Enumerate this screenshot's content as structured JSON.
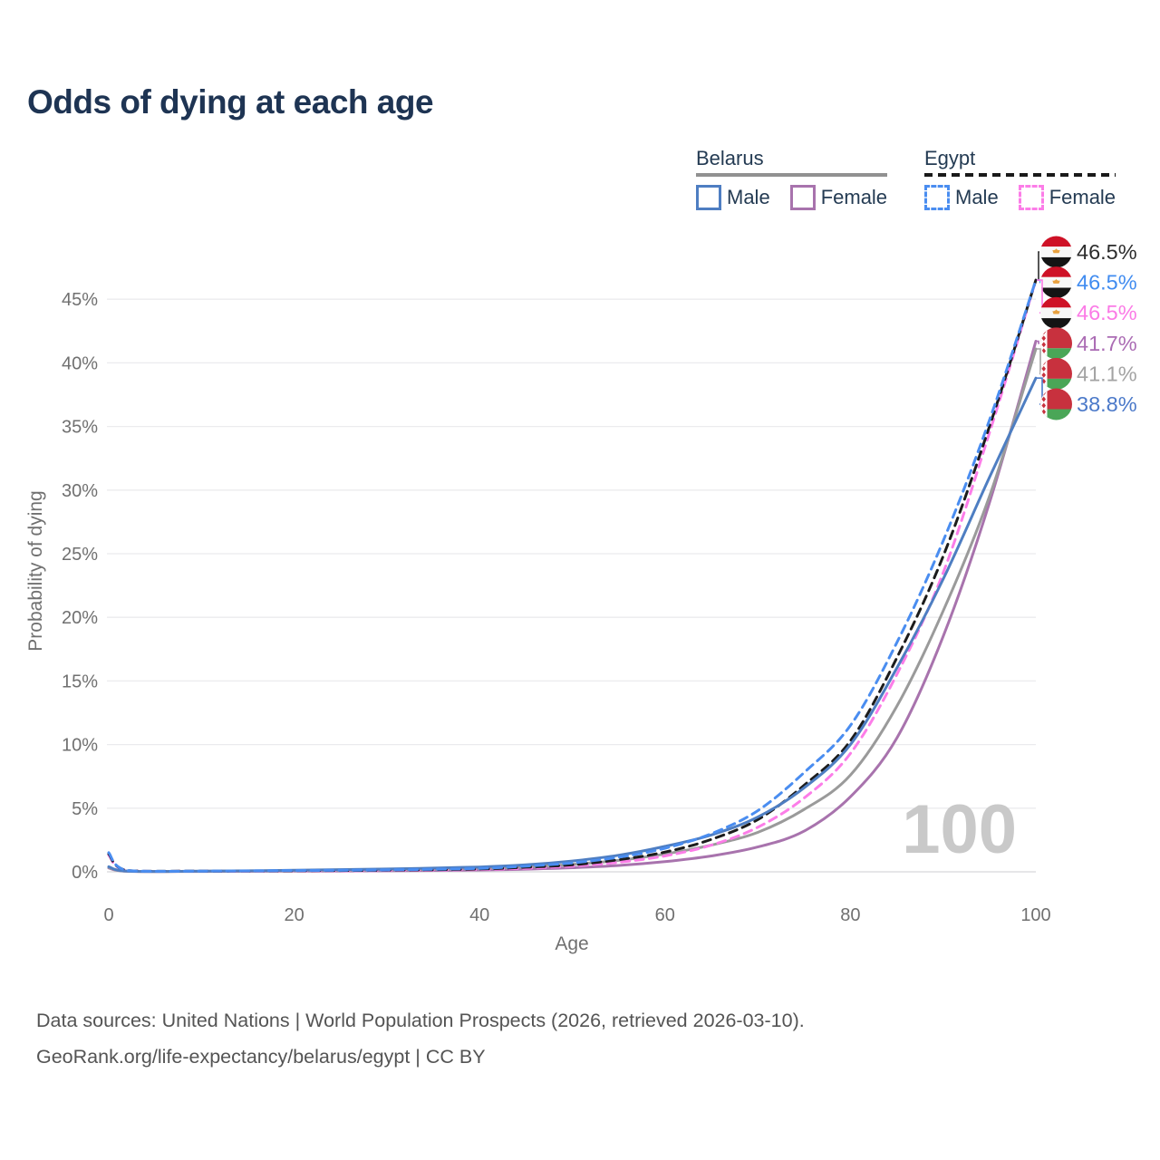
{
  "title": "Odds of dying at each age",
  "legend": {
    "groups": [
      {
        "country": "Belarus",
        "line_style": "solid",
        "underline_color": "#919191",
        "items": [
          {
            "label": "Male",
            "color": "#4e7ec2",
            "dashed": false
          },
          {
            "label": "Female",
            "color": "#a873ad",
            "dashed": false
          }
        ]
      },
      {
        "country": "Egypt",
        "line_style": "dashed",
        "underline_color": "#1a1a1a",
        "items": [
          {
            "label": "Male",
            "color": "#4a8df0",
            "dashed": true
          },
          {
            "label": "Female",
            "color": "#fc7de8",
            "dashed": true
          }
        ]
      }
    ]
  },
  "chart_data": {
    "type": "line",
    "title": "Odds of dying at each age",
    "xlabel": "Age",
    "ylabel": "Probability of dying",
    "xlim": [
      0,
      100
    ],
    "ylim_percent": [
      0,
      48
    ],
    "grid": true,
    "legend_position": "top-right",
    "watermark": "100",
    "xticks": [
      0,
      20,
      40,
      60,
      80,
      100
    ],
    "yticks": [
      {
        "value": 0,
        "label": "0%"
      },
      {
        "value": 5,
        "label": "5%"
      },
      {
        "value": 10,
        "label": "10%"
      },
      {
        "value": 15,
        "label": "15%"
      },
      {
        "value": 20,
        "label": "20%"
      },
      {
        "value": 25,
        "label": "25%"
      },
      {
        "value": 30,
        "label": "30%"
      },
      {
        "value": 35,
        "label": "35%"
      },
      {
        "value": 40,
        "label": "40%"
      },
      {
        "value": 45,
        "label": "45%"
      }
    ],
    "ages": [
      0,
      2,
      10,
      20,
      30,
      40,
      45,
      50,
      55,
      60,
      65,
      70,
      75,
      80,
      85,
      90,
      95,
      100
    ],
    "series": [
      {
        "id": "belarus-female",
        "country": "Belarus",
        "sex": "Female",
        "color": "#a873ad",
        "dashed": false,
        "values_percent": [
          0.3,
          0.04,
          0.03,
          0.05,
          0.08,
          0.14,
          0.21,
          0.32,
          0.5,
          0.8,
          1.25,
          1.95,
          3.2,
          5.9,
          10.5,
          18.5,
          29,
          41.7
        ]
      },
      {
        "id": "belarus-both",
        "country": "Belarus",
        "sex": "Both sexes",
        "color": "#9a9a9a",
        "dashed": false,
        "values_percent": [
          0.35,
          0.05,
          0.04,
          0.09,
          0.15,
          0.26,
          0.38,
          0.58,
          0.9,
          1.4,
          2.1,
          3.1,
          4.9,
          7.6,
          13,
          20.5,
          29.5,
          41.1
        ]
      },
      {
        "id": "egypt-female",
        "country": "Egypt",
        "sex": "Female",
        "color": "#fc7de8",
        "dashed": true,
        "values_percent": [
          1.3,
          0.09,
          0.05,
          0.07,
          0.1,
          0.18,
          0.28,
          0.45,
          0.75,
          1.25,
          2.1,
          3.5,
          5.8,
          9.3,
          15.5,
          23.5,
          34.5,
          46.5
        ]
      },
      {
        "id": "egypt-both",
        "country": "Egypt",
        "sex": "Both sexes",
        "color": "#1c1c1c",
        "dashed": true,
        "values_percent": [
          1.4,
          0.1,
          0.055,
          0.085,
          0.125,
          0.22,
          0.36,
          0.55,
          0.95,
          1.55,
          2.55,
          4.1,
          6.8,
          10.3,
          16.8,
          24.8,
          35,
          46.5
        ]
      },
      {
        "id": "belarus-male",
        "country": "Belarus",
        "sex": "Male",
        "color": "#4e7ec2",
        "dashed": false,
        "values_percent": [
          0.4,
          0.06,
          0.05,
          0.12,
          0.22,
          0.38,
          0.55,
          0.85,
          1.3,
          2,
          2.9,
          4.3,
          6.6,
          10,
          16,
          23,
          31,
          38.8
        ]
      },
      {
        "id": "egypt-male",
        "country": "Egypt",
        "sex": "Male",
        "color": "#4a8df0",
        "dashed": true,
        "values_percent": [
          1.5,
          0.1,
          0.06,
          0.1,
          0.15,
          0.27,
          0.45,
          0.7,
          1.15,
          1.85,
          3,
          4.8,
          7.8,
          11.5,
          18,
          26,
          35.5,
          46.5
        ]
      }
    ],
    "end_labels": [
      {
        "label": "46.5%",
        "value_percent": 46.5,
        "color": "#2d2d2d",
        "flag": "egypt",
        "series": "egypt-both"
      },
      {
        "label": "46.5%",
        "value_percent": 46.5,
        "color": "#418cf0",
        "flag": "egypt",
        "series": "egypt-male"
      },
      {
        "label": "46.5%",
        "value_percent": 46.5,
        "color": "#fb7be6",
        "flag": "egypt",
        "series": "egypt-female"
      },
      {
        "label": "41.7%",
        "value_percent": 41.7,
        "color": "#ab6cb4",
        "flag": "belarus",
        "series": "belarus-female"
      },
      {
        "label": "41.1%",
        "value_percent": 41.1,
        "color": "#a3a3a3",
        "flag": "belarus",
        "series": "belarus-both"
      },
      {
        "label": "38.8%",
        "value_percent": 38.8,
        "color": "#4b79c9",
        "flag": "belarus",
        "series": "belarus-male"
      }
    ],
    "flag_colors": {
      "egypt": {
        "red": "#ce1126",
        "white": "#f7f7f7",
        "black": "#141414",
        "gold": "#e8a13f"
      },
      "belarus": {
        "red": "#c8313e",
        "green": "#4aa657",
        "white": "#ffffff"
      }
    }
  },
  "source": {
    "line1": "Data sources: United Nations | World Population Prospects (2026, retrieved 2026-03-10).",
    "line2": "GeoRank.org/life-expectancy/belarus/egypt | CC BY"
  }
}
